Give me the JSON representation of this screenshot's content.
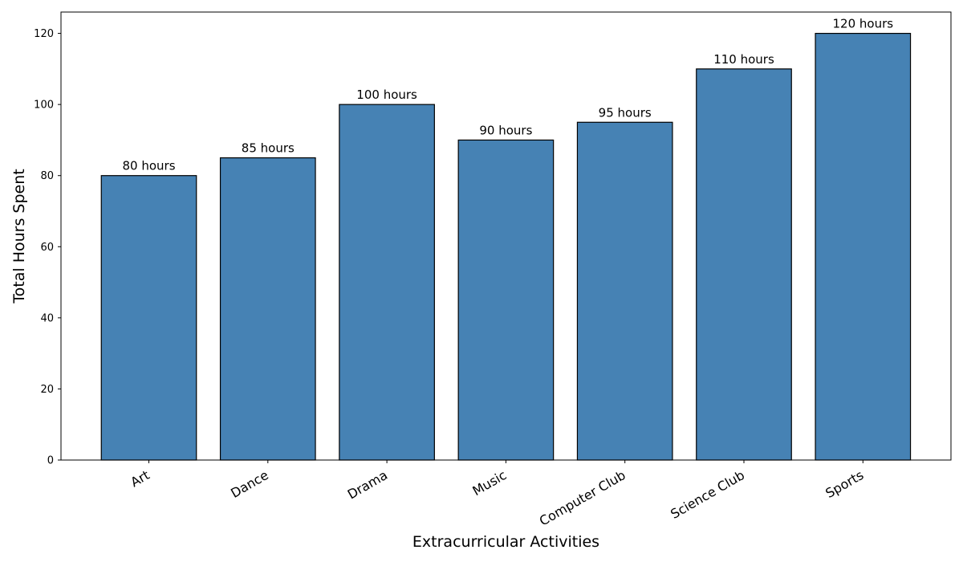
{
  "chart_data": {
    "type": "bar",
    "categories": [
      "Art",
      "Dance",
      "Drama",
      "Music",
      "Computer Club",
      "Science Club",
      "Sports"
    ],
    "values": [
      80,
      85,
      100,
      90,
      95,
      110,
      120
    ],
    "data_labels": [
      "80 hours",
      "85 hours",
      "100 hours",
      "90 hours",
      "95 hours",
      "110 hours",
      "120 hours"
    ],
    "xlabel": "Extracurricular Activities",
    "ylabel": "Total Hours Spent",
    "ylim": [
      0,
      126
    ],
    "yticks": [
      0,
      20,
      40,
      60,
      80,
      100,
      120
    ],
    "grid": false,
    "bar_color": "#4682b4",
    "edge_color": "#000000",
    "x_tick_rotation_deg": 30
  }
}
